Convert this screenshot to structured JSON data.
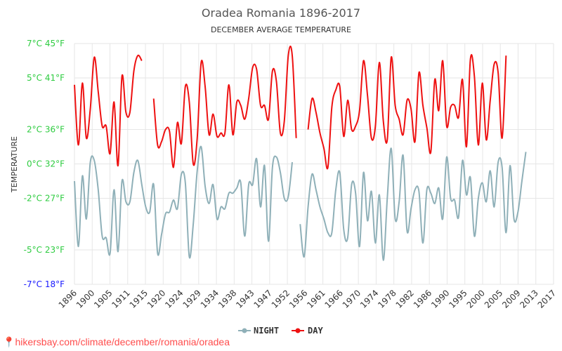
{
  "chart_data": {
    "type": "line",
    "title": "Oradea Romania 1896-2017",
    "subtitle": "DECEMBER AVERAGE TEMPERATURE",
    "ylabel": "TEMPERATURE",
    "xlabel": "",
    "ylim": [
      -7,
      7
    ],
    "xlim": [
      1896,
      2017
    ],
    "yticks": [
      {
        "value": 7,
        "label": "7°C 45°F",
        "color": "#2ecc40"
      },
      {
        "value": 5,
        "label": "5°C 41°F",
        "color": "#2ecc40"
      },
      {
        "value": 2,
        "label": "2°C 36°F",
        "color": "#2ecc40"
      },
      {
        "value": 0,
        "label": "0°C 32°F",
        "color": "#2ecc40"
      },
      {
        "value": -2,
        "label": "-2°C 27°F",
        "color": "#2ecc40"
      },
      {
        "value": -5,
        "label": "-5°C 23°F",
        "color": "#2ecc40"
      },
      {
        "value": -7,
        "label": "-7°C 18°F",
        "color": "#1a1aff"
      }
    ],
    "xticks": [
      "1896",
      "1900",
      "1905",
      "1911",
      "1915",
      "1920",
      "1924",
      "1929",
      "1934",
      "1938",
      "1943",
      "1947",
      "1952",
      "1956",
      "1961",
      "1966",
      "1970",
      "1974",
      "1978",
      "1982",
      "1986",
      "1990",
      "1995",
      "2000",
      "2005",
      "2009",
      "2013",
      "2017"
    ],
    "grid": true,
    "legend": "bottom-center",
    "series": [
      {
        "name": "NIGHT",
        "color": "#8fb0b8",
        "points": [
          [
            1896,
            -1
          ],
          [
            1897,
            -4.8
          ],
          [
            1898,
            -0.7
          ],
          [
            1899,
            -3.2
          ],
          [
            1900,
            0.1
          ],
          [
            1901,
            0.2
          ],
          [
            1902,
            -1.5
          ],
          [
            1903,
            -4.2
          ],
          [
            1904,
            -4.3
          ],
          [
            1905,
            -5.2
          ],
          [
            1906,
            -1.5
          ],
          [
            1907,
            -5.1
          ],
          [
            1908,
            -1
          ],
          [
            1909,
            -2.2
          ],
          [
            1910,
            -2.2
          ],
          [
            1911,
            -0.5
          ],
          [
            1912,
            0.2
          ],
          [
            1913,
            -1.2
          ],
          [
            1914,
            -2.5
          ],
          [
            1915,
            -2.8
          ],
          [
            1916,
            -1.2
          ],
          [
            1917,
            -5.2
          ],
          [
            1918,
            -4.1
          ],
          [
            1919,
            -2.9
          ],
          [
            1920,
            -2.8
          ],
          [
            1921,
            -2.1
          ],
          [
            1922,
            -2.6
          ],
          [
            1923,
            -0.6
          ],
          [
            1924,
            -1.1
          ],
          [
            1925,
            -5.4
          ],
          [
            1926,
            -3.5
          ],
          [
            1927,
            -0.4
          ],
          [
            1928,
            1
          ],
          [
            1929,
            -1.3
          ],
          [
            1930,
            -2.3
          ],
          [
            1931,
            -1.2
          ],
          [
            1932,
            -3.2
          ],
          [
            1933,
            -2.5
          ],
          [
            1934,
            -2.6
          ],
          [
            1935,
            -1.7
          ],
          [
            1936,
            -1.7
          ],
          [
            1937,
            -1.4
          ],
          [
            1938,
            -1.1
          ],
          [
            1939,
            -4.2
          ],
          [
            1940,
            -1.2
          ],
          [
            1941,
            -1.2
          ],
          [
            1942,
            0.3
          ],
          [
            1943,
            -2.5
          ],
          [
            1944,
            -0.1
          ],
          [
            1945,
            -4.5
          ],
          [
            1946,
            -0.2
          ],
          [
            1947,
            0.4
          ],
          [
            1948,
            -0.5
          ],
          [
            1949,
            -2
          ],
          [
            1950,
            -1.9
          ],
          [
            1951,
            0.1
          ],
          [
            1953,
            -3.5
          ],
          [
            1954,
            -5.4
          ],
          [
            1955,
            -2.5
          ],
          [
            1956,
            -0.6
          ],
          [
            1957,
            -1.5
          ],
          [
            1958,
            -2.5
          ],
          [
            1959,
            -3.2
          ],
          [
            1960,
            -4
          ],
          [
            1961,
            -4
          ],
          [
            1962,
            -1.5
          ],
          [
            1963,
            -0.5
          ],
          [
            1964,
            -3.8
          ],
          [
            1965,
            -4.3
          ],
          [
            1966,
            -1.2
          ],
          [
            1967,
            -1.7
          ],
          [
            1968,
            -4.8
          ],
          [
            1969,
            -0.5
          ],
          [
            1970,
            -3.3
          ],
          [
            1971,
            -1.6
          ],
          [
            1972,
            -4.6
          ],
          [
            1973,
            -1.8
          ],
          [
            1974,
            -5.6
          ],
          [
            1975,
            -2
          ],
          [
            1976,
            0.9
          ],
          [
            1977,
            -3.2
          ],
          [
            1978,
            -2.2
          ],
          [
            1979,
            0.5
          ],
          [
            1980,
            -3.9
          ],
          [
            1981,
            -2.6
          ],
          [
            1982,
            -1.5
          ],
          [
            1983,
            -1.6
          ],
          [
            1984,
            -4.6
          ],
          [
            1985,
            -1.5
          ],
          [
            1986,
            -1.7
          ],
          [
            1987,
            -2.3
          ],
          [
            1988,
            -1.4
          ],
          [
            1989,
            -3.2
          ],
          [
            1990,
            0.4
          ],
          [
            1991,
            -2
          ],
          [
            1992,
            -2.1
          ],
          [
            1993,
            -3.1
          ],
          [
            1994,
            0.2
          ],
          [
            1995,
            -1.8
          ],
          [
            1996,
            -0.8
          ],
          [
            1997,
            -4.2
          ],
          [
            1998,
            -2
          ],
          [
            1999,
            -1.1
          ],
          [
            2000,
            -2.2
          ],
          [
            2001,
            -0.4
          ],
          [
            2002,
            -2.5
          ],
          [
            2003,
            0.1
          ],
          [
            2004,
            -0.2
          ],
          [
            2005,
            -4
          ],
          [
            2006,
            -0.1
          ],
          [
            2007,
            -3.2
          ],
          [
            2008,
            -2.8
          ],
          [
            2009,
            -1
          ],
          [
            2010,
            0.7
          ]
        ]
      },
      {
        "name": "DAY",
        "color": "#ee1111",
        "points": [
          [
            1896,
            4.6
          ],
          [
            1897,
            1.1
          ],
          [
            1898,
            4.7
          ],
          [
            1899,
            1.5
          ],
          [
            1900,
            3.2
          ],
          [
            1901,
            6.2
          ],
          [
            1902,
            4.2
          ],
          [
            1903,
            2.2
          ],
          [
            1904,
            2.2
          ],
          [
            1905,
            0.6
          ],
          [
            1906,
            3.6
          ],
          [
            1907,
            -0.1
          ],
          [
            1908,
            5.1
          ],
          [
            1909,
            3
          ],
          [
            1910,
            3
          ],
          [
            1911,
            5.4
          ],
          [
            1912,
            6.3
          ],
          [
            1913,
            6
          ],
          [
            1916,
            3.8
          ],
          [
            1917,
            1.1
          ],
          [
            1918,
            1.3
          ],
          [
            1919,
            2
          ],
          [
            1920,
            1.9
          ],
          [
            1921,
            -0.2
          ],
          [
            1922,
            2.4
          ],
          [
            1923,
            1.2
          ],
          [
            1924,
            4.5
          ],
          [
            1925,
            3.6
          ],
          [
            1926,
            0
          ],
          [
            1927,
            1.5
          ],
          [
            1928,
            5.9
          ],
          [
            1929,
            4.5
          ],
          [
            1930,
            1.7
          ],
          [
            1931,
            2.9
          ],
          [
            1932,
            1.6
          ],
          [
            1933,
            1.8
          ],
          [
            1934,
            1.8
          ],
          [
            1935,
            4.6
          ],
          [
            1936,
            1.7
          ],
          [
            1937,
            3.6
          ],
          [
            1938,
            3.4
          ],
          [
            1939,
            2.6
          ],
          [
            1940,
            3.8
          ],
          [
            1941,
            5.6
          ],
          [
            1942,
            5.5
          ],
          [
            1943,
            3.4
          ],
          [
            1944,
            3.4
          ],
          [
            1945,
            2.6
          ],
          [
            1946,
            5.4
          ],
          [
            1947,
            4.8
          ],
          [
            1948,
            1.8
          ],
          [
            1949,
            2.5
          ],
          [
            1950,
            6.3
          ],
          [
            1951,
            6.3
          ],
          [
            1952,
            1.5
          ],
          [
            1955,
            2
          ],
          [
            1956,
            3.8
          ],
          [
            1957,
            3
          ],
          [
            1958,
            1.8
          ],
          [
            1959,
            0.9
          ],
          [
            1960,
            -0.2
          ],
          [
            1961,
            3.3
          ],
          [
            1962,
            4.3
          ],
          [
            1963,
            4.5
          ],
          [
            1964,
            1.6
          ],
          [
            1965,
            3.7
          ],
          [
            1966,
            2
          ],
          [
            1967,
            2.2
          ],
          [
            1968,
            3.1
          ],
          [
            1969,
            6
          ],
          [
            1970,
            4
          ],
          [
            1971,
            1.5
          ],
          [
            1972,
            2.2
          ],
          [
            1973,
            5.9
          ],
          [
            1974,
            2.5
          ],
          [
            1975,
            1.4
          ],
          [
            1976,
            6.2
          ],
          [
            1977,
            3.4
          ],
          [
            1978,
            2.6
          ],
          [
            1979,
            1.7
          ],
          [
            1980,
            3.7
          ],
          [
            1981,
            3.2
          ],
          [
            1982,
            1.3
          ],
          [
            1983,
            5.3
          ],
          [
            1984,
            3.4
          ],
          [
            1985,
            2.1
          ],
          [
            1986,
            0.7
          ],
          [
            1987,
            4.9
          ],
          [
            1988,
            3.1
          ],
          [
            1989,
            6
          ],
          [
            1990,
            2.2
          ],
          [
            1991,
            3.3
          ],
          [
            1992,
            3.4
          ],
          [
            1993,
            2.7
          ],
          [
            1994,
            4.9
          ],
          [
            1995,
            1
          ],
          [
            1996,
            6.1
          ],
          [
            1997,
            5.1
          ],
          [
            1998,
            1.1
          ],
          [
            1999,
            4.7
          ],
          [
            2000,
            1.4
          ],
          [
            2001,
            3.7
          ],
          [
            2002,
            5.8
          ],
          [
            2003,
            5.3
          ],
          [
            2004,
            1.5
          ],
          [
            2005,
            6.3
          ]
        ]
      }
    ]
  },
  "source": {
    "pin_icon": "location-pin-icon",
    "text": "hikersbay.com/climate/december/romania/oradea"
  }
}
